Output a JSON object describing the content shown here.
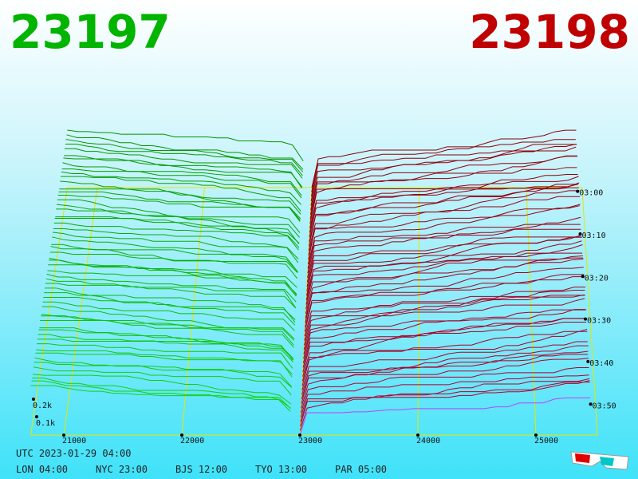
{
  "header": {
    "bid": "23197",
    "ask": "23198"
  },
  "price_axis": {
    "labels": [
      "21000",
      "22000",
      "23000",
      "24000",
      "25000"
    ]
  },
  "volume_axis": {
    "labels": [
      "0.2k",
      "0.1k"
    ]
  },
  "time_axis": {
    "labels": [
      "03:00",
      "03:10",
      "03:20",
      "03:30",
      "03:40",
      "03:50"
    ]
  },
  "footer": {
    "utc": "UTC 2023-01-29 04:00",
    "zones": [
      "LON 04:00",
      "NYC 23:00",
      "BJS 12:00",
      "TYO 13:00",
      "PAR 05:00"
    ]
  }
}
